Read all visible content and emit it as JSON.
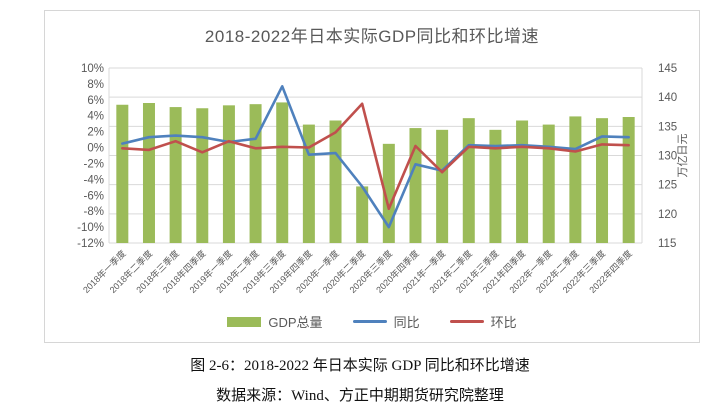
{
  "chart_data": {
    "type": "combo-bar-line",
    "title": "2018-2022年日本实际GDP同比和环比增速",
    "categories": [
      "2018年一季度",
      "2018年二季度",
      "2018年三季度",
      "2018年四季度",
      "2019年一季度",
      "2019年二季度",
      "2019年三季度",
      "2019年四季度",
      "2020年一季度",
      "2020年二季度",
      "2020年三季度",
      "2020年四季度",
      "2021年一季度",
      "2021年二季度",
      "2021年三季度",
      "2021年四季度",
      "2022年一季度",
      "2022年二季度",
      "2022年三季度",
      "2022年四季度"
    ],
    "series": [
      {
        "name": "GDP总量",
        "type": "bar",
        "axis": "right",
        "unit": "万亿日元",
        "color": "#9BBB59",
        "values": [
          138.7,
          139.0,
          138.3,
          138.1,
          138.6,
          138.8,
          139.1,
          135.3,
          136.0,
          124.7,
          132.0,
          134.7,
          134.4,
          136.4,
          134.4,
          136.0,
          135.3,
          136.7,
          136.4,
          136.6
        ]
      },
      {
        "name": "同比",
        "type": "line",
        "axis": "left",
        "unit": "%",
        "color": "#4F81BD",
        "values": [
          0.5,
          1.3,
          1.5,
          1.3,
          0.7,
          1.1,
          7.7,
          -0.9,
          -0.7,
          -4.9,
          -10.0,
          -2.1,
          -2.9,
          0.3,
          0.2,
          0.3,
          0.1,
          -0.2,
          1.4,
          1.3
        ]
      },
      {
        "name": "环比",
        "type": "line",
        "axis": "left",
        "unit": "%",
        "color": "#C0504D",
        "values": [
          -0.1,
          -0.3,
          0.8,
          -0.6,
          0.8,
          -0.1,
          0.1,
          0.0,
          1.9,
          5.5,
          -7.7,
          0.2,
          -3.1,
          0.1,
          -0.1,
          0.1,
          -0.1,
          -0.5,
          0.4,
          0.3
        ]
      }
    ],
    "left_axis": {
      "min": -12,
      "max": 10,
      "ticks": [
        10,
        8,
        6,
        4,
        2,
        0,
        -2,
        -4,
        -6,
        -8,
        -10,
        -12
      ],
      "tick_suffix": "%"
    },
    "right_axis": {
      "min": 115,
      "max": 145,
      "ticks": [
        145,
        140,
        135,
        130,
        125,
        120,
        115
      ],
      "title": "万亿日元"
    },
    "grid": "horizontal-on-right-axis-ticks",
    "legend_position": "bottom",
    "colors": {
      "grid": "#D9D9D9",
      "axis_text": "#595959"
    }
  },
  "caption": {
    "line1": "图 2-6：2018-2022 年日本实际 GDP 同比和环比增速",
    "line2": "数据来源：Wind、方正中期期货研究院整理"
  }
}
